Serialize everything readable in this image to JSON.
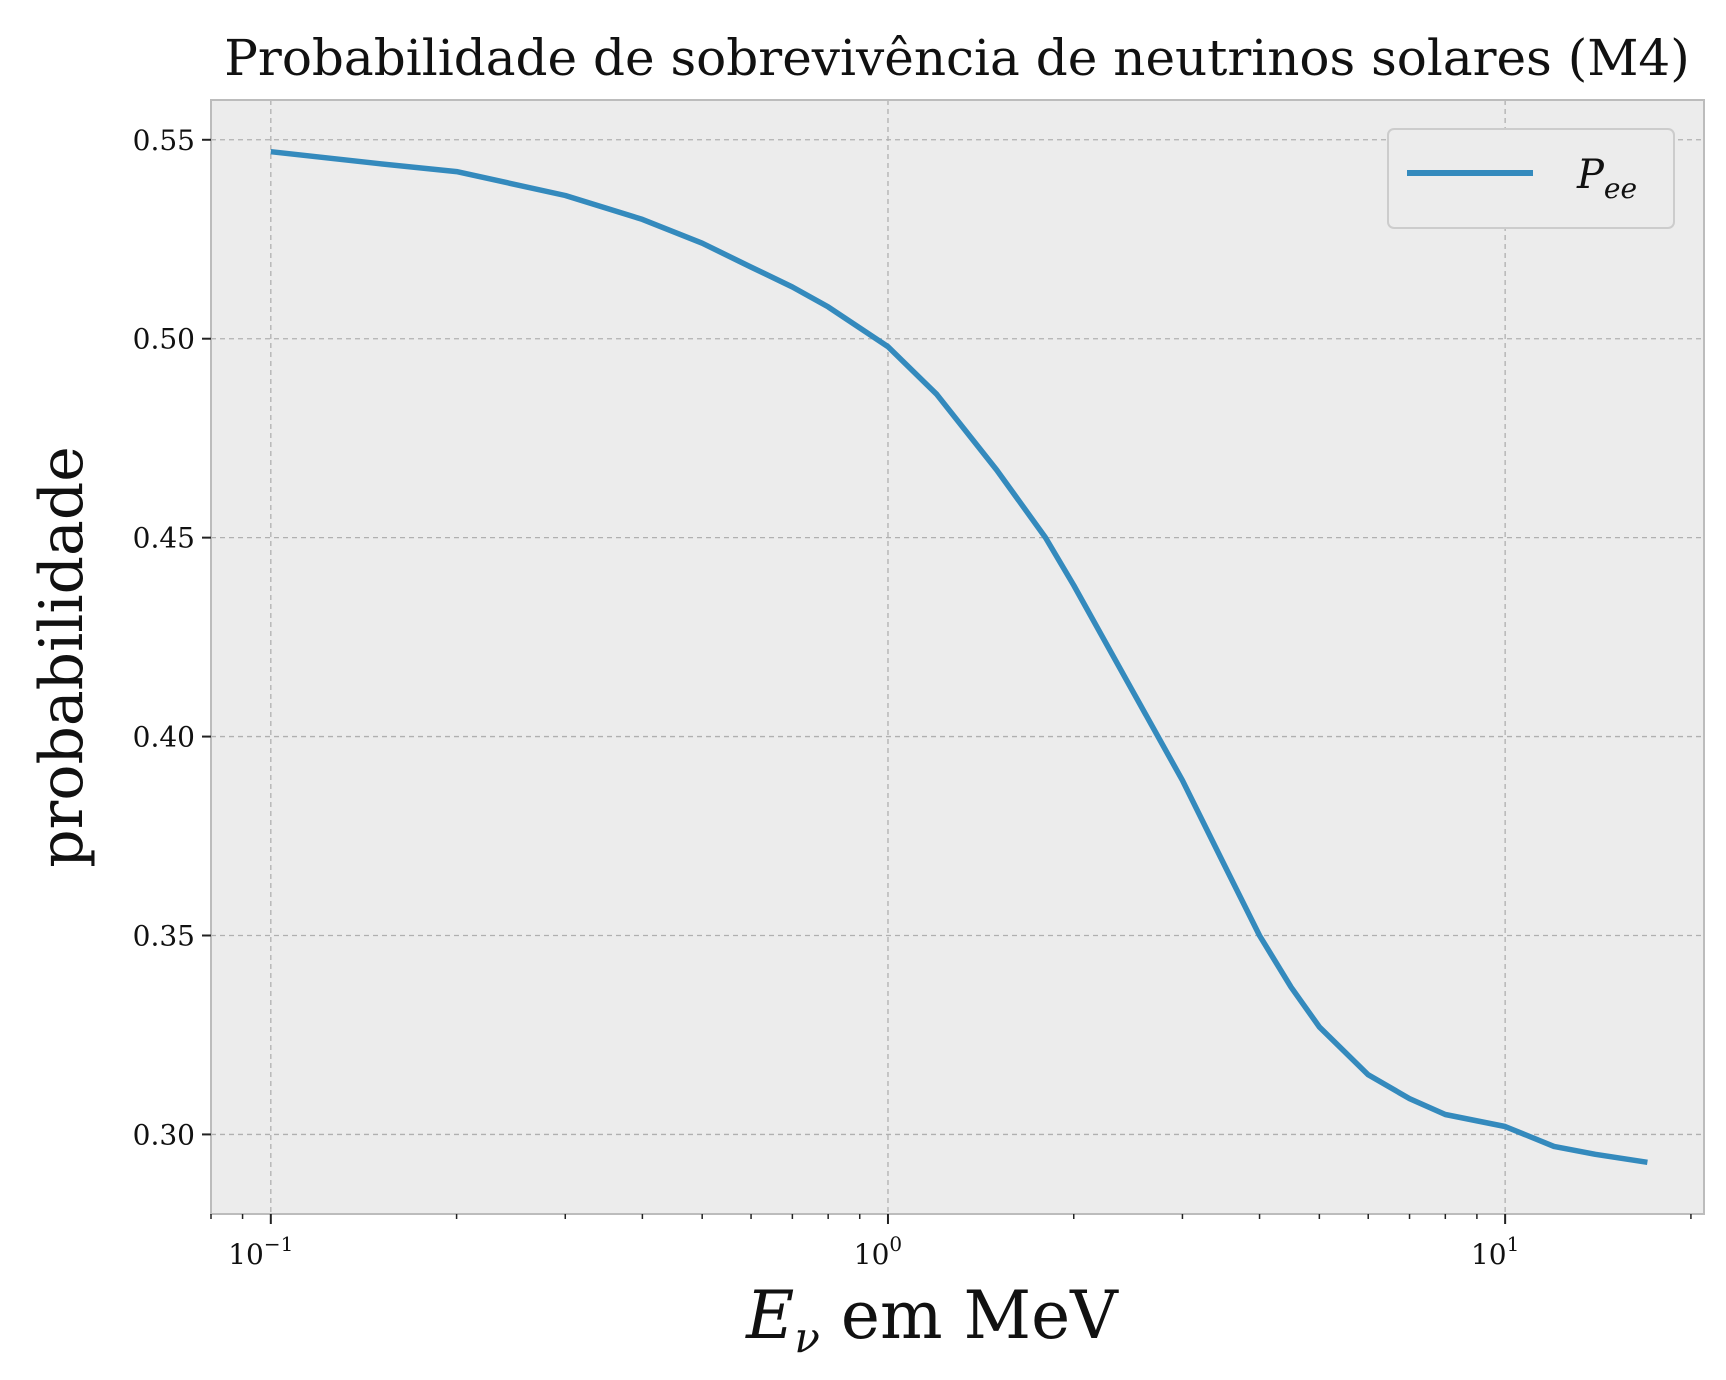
{
  "chart_data": {
    "type": "line",
    "title": "Probabilidade de sobrevivência de neutrinos solares (M4)",
    "xlabel_math": "E",
    "xlabel_sub": "ν",
    "xlabel_text": " em MeV",
    "ylabel": "probabilidade",
    "xscale": "log",
    "xlim": [
      0.08,
      21
    ],
    "ylim": [
      0.28,
      0.56
    ],
    "grid": true,
    "legend_position": "top-right",
    "x_ticks": [
      {
        "value": 0.1,
        "base": "10",
        "exp": "−1"
      },
      {
        "value": 1,
        "base": "10",
        "exp": "0"
      },
      {
        "value": 10,
        "base": "10",
        "exp": "1"
      }
    ],
    "y_ticks": [
      {
        "value": 0.3,
        "label": "0.30"
      },
      {
        "value": 0.35,
        "label": "0.35"
      },
      {
        "value": 0.4,
        "label": "0.40"
      },
      {
        "value": 0.45,
        "label": "0.45"
      },
      {
        "value": 0.5,
        "label": "0.50"
      },
      {
        "value": 0.55,
        "label": "0.55"
      }
    ],
    "series": [
      {
        "name_main": "P",
        "name_sub": "ee",
        "color": "#348abd",
        "x": [
          0.1,
          0.15,
          0.2,
          0.3,
          0.4,
          0.5,
          0.6,
          0.7,
          0.8,
          1.0,
          1.2,
          1.5,
          1.8,
          2.0,
          2.5,
          3.0,
          3.5,
          4.0,
          4.5,
          5.0,
          6.0,
          7.0,
          8.0,
          10.0,
          12.0,
          14.0,
          17.0
        ],
        "y": [
          0.547,
          0.544,
          0.542,
          0.536,
          0.53,
          0.524,
          0.518,
          0.513,
          0.508,
          0.498,
          0.486,
          0.467,
          0.45,
          0.438,
          0.411,
          0.389,
          0.368,
          0.35,
          0.337,
          0.327,
          0.315,
          0.309,
          0.305,
          0.302,
          0.297,
          0.295,
          0.293
        ]
      }
    ]
  },
  "colors": {
    "plot_background": "#ececec",
    "grid": "#b0b0b0",
    "spine": "#bcbcbc",
    "line": "#348abd"
  }
}
